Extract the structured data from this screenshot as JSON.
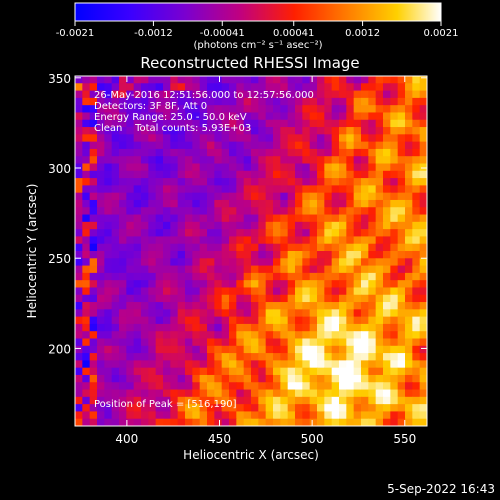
{
  "chart_data": {
    "type": "heatmap",
    "title": "Reconstructed RHESSI Image",
    "xlabel": "Heliocentric X (arcsec)",
    "ylabel": "Heliocentric Y (arcsec)",
    "xlim": [
      372,
      562
    ],
    "ylim": [
      157,
      351
    ],
    "x_ticks": [
      400,
      450,
      500,
      550
    ],
    "y_ticks": [
      200,
      250,
      300,
      350
    ],
    "colorbar": {
      "ticks": [
        "-0.0021",
        "-0.0012",
        "-0.00041",
        "0.00041",
        "0.0012",
        "0.0021"
      ],
      "range": [
        -0.0021,
        0.0021
      ],
      "unit": "(photons cm⁻² s⁻¹ asec⁻²)",
      "colormap": [
        "#0000ff",
        "#3a00ff",
        "#7a00d0",
        "#c00080",
        "#ff2000",
        "#ff8000",
        "#ffd000",
        "#ffffff"
      ]
    },
    "annotations": [
      "26-May-2016 12:51:56.000 to 12:57:56.000",
      "Detectors: 3F 8F, Att 0",
      "Energy Range: 25.0 - 50.0 keV",
      "Clean    Total counts: 5.93E+03"
    ],
    "peak_label": "Position of Peak = [516,190]",
    "peak": [
      516,
      190
    ],
    "grid_size": 48
  },
  "timestamp": "5-Sep-2022 16:43"
}
